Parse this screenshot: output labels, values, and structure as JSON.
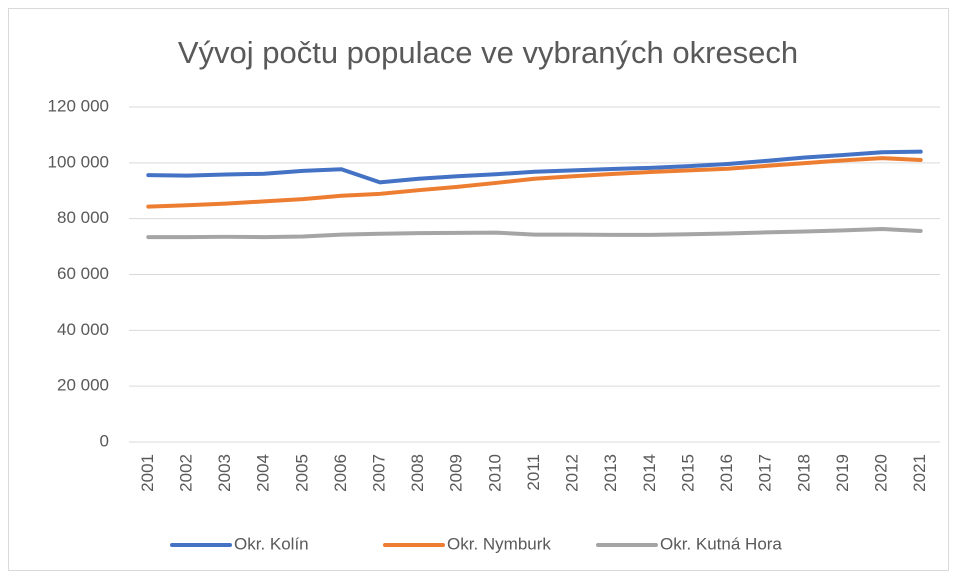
{
  "chart_data": {
    "type": "line",
    "title": "Vývoj počtu populace ve vybraných okresech",
    "categories": [
      "2001",
      "2002",
      "2003",
      "2004",
      "2005",
      "2006",
      "2007",
      "2008",
      "2009",
      "2010",
      "2011",
      "2012",
      "2013",
      "2014",
      "2015",
      "2016",
      "2017",
      "2018",
      "2019",
      "2020",
      "2021"
    ],
    "series": [
      {
        "name": "Okr. Kolín",
        "color": "#4472c4",
        "values": [
          95600,
          95400,
          95800,
          96100,
          97100,
          97700,
          93000,
          94300,
          95200,
          95900,
          96800,
          97300,
          97800,
          98200,
          98800,
          99600,
          100700,
          101900,
          102800,
          103800,
          104000
        ]
      },
      {
        "name": "Okr. Nymburk",
        "color": "#ed7d31",
        "values": [
          84300,
          84800,
          85400,
          86200,
          87000,
          88200,
          88900,
          90200,
          91400,
          92800,
          94300,
          95200,
          96000,
          96700,
          97300,
          97900,
          98900,
          99900,
          100900,
          101700,
          101000
        ]
      },
      {
        "name": "Okr. Kutná Hora",
        "color": "#a5a5a5",
        "values": [
          73400,
          73400,
          73500,
          73400,
          73600,
          74300,
          74600,
          74800,
          74900,
          75000,
          74300,
          74300,
          74200,
          74200,
          74400,
          74700,
          75100,
          75400,
          75800,
          76300,
          75600
        ]
      }
    ],
    "ylim": [
      0,
      120000
    ],
    "yticks": [
      0,
      {
        "value": 20000,
        "label": "20 000"
      },
      {
        "value": 40000,
        "label": "40 000"
      },
      {
        "value": 60000,
        "label": "60 000"
      },
      {
        "value": 80000,
        "label": "80 000"
      },
      {
        "value": 100000,
        "label": "100 000"
      },
      {
        "value": 120000,
        "label": "120 000"
      }
    ],
    "grid": true,
    "legend": "bottom"
  }
}
